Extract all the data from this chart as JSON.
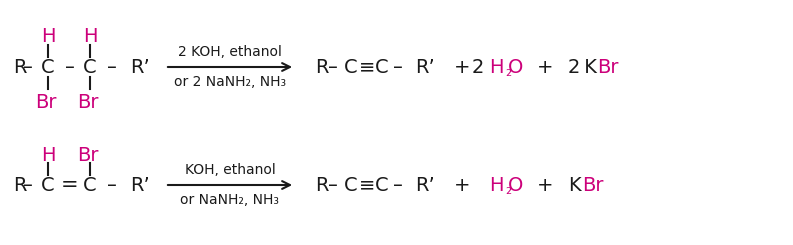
{
  "background": "#ffffff",
  "black": "#1a1a1a",
  "magenta": "#cc007a",
  "rxn1": {
    "reagent_line1": "2 KOH, ethanol",
    "reagent_line2": "or 2 NaNH₂, NH₃"
  },
  "rxn2": {
    "reagent_line1": "KOH, ethanol",
    "reagent_line2": "or NaNH₂, NH₃"
  }
}
